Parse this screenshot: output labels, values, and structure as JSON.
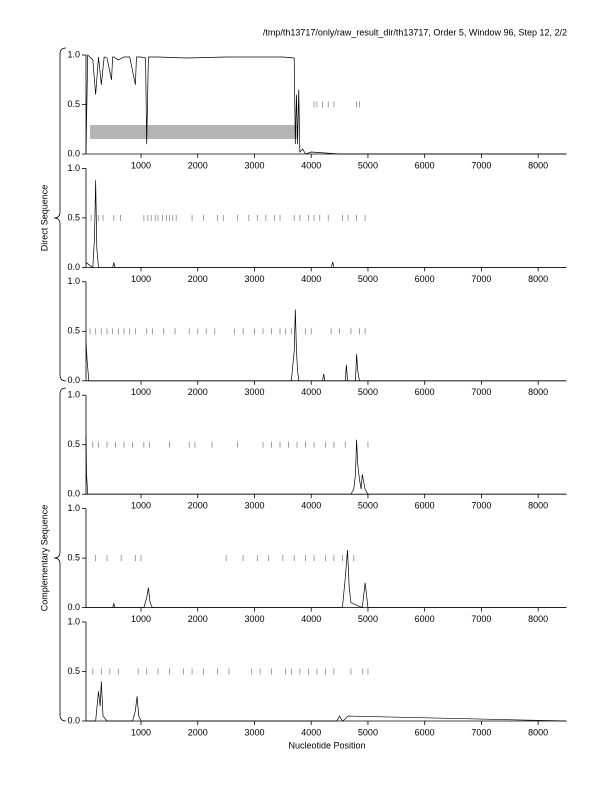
{
  "title": "/tmp/th13717/only/raw_result_dir/th13717, Order 5, Window 96, Step 12, 2/2",
  "x_label": "Nucleotide Position",
  "groups": [
    {
      "label": "Direct Sequence"
    },
    {
      "label": "Complementary Sequence"
    }
  ],
  "chart_data": [
    {
      "type": "line",
      "xlim": [
        0,
        8500
      ],
      "ylim": [
        0,
        1
      ],
      "xticks": [
        1000,
        2000,
        3000,
        4000,
        5000,
        6000,
        7000,
        8000
      ],
      "yticks": [
        {
          "value": 0,
          "label": "0.0"
        },
        {
          "value": 0.5,
          "label": "0.5"
        },
        {
          "value": 1,
          "label": "1.0"
        }
      ],
      "x": [
        30,
        60,
        100,
        150,
        200,
        250,
        300,
        350,
        400,
        480,
        500,
        520,
        600,
        700,
        800,
        900,
        920,
        950,
        1000,
        1080,
        1100,
        1130,
        1150,
        1200,
        1300,
        1800,
        2500,
        3000,
        3500,
        3700,
        3720,
        3740,
        3760,
        3780,
        3800,
        3850,
        3900,
        4000,
        4500,
        5000,
        8500
      ],
      "values": [
        0,
        1,
        0.98,
        0.95,
        0.6,
        0.98,
        0.7,
        0.98,
        0.97,
        0.75,
        0.98,
        0.98,
        0.95,
        0.98,
        0.98,
        0.7,
        0.98,
        0.98,
        0.98,
        0.97,
        0.1,
        0.98,
        0.98,
        0.98,
        0.98,
        0.97,
        0.98,
        0.98,
        0.98,
        0.97,
        0.1,
        0.6,
        0.1,
        0.65,
        0.02,
        0.05,
        0,
        0.02,
        0,
        0,
        0
      ],
      "stops": [
        4050,
        4100,
        4200,
        4300,
        4400,
        4800,
        4850
      ],
      "regions": [
        {
          "start": 100,
          "end": 3750
        }
      ]
    },
    {
      "type": "line",
      "xlim": [
        0,
        8500
      ],
      "ylim": [
        0,
        1
      ],
      "xticks": [
        1000,
        2000,
        3000,
        4000,
        5000,
        6000,
        7000,
        8000
      ],
      "yticks": [
        {
          "value": 0,
          "label": "0.0"
        },
        {
          "value": 0.5,
          "label": "0.5"
        },
        {
          "value": 1,
          "label": "1.0"
        }
      ],
      "x": [
        30,
        100,
        150,
        180,
        200,
        220,
        250,
        300,
        500,
        520,
        540,
        1000,
        4350,
        4380,
        4400,
        8500
      ],
      "values": [
        0.05,
        0.02,
        0,
        0.3,
        0.88,
        0.2,
        0,
        0,
        0,
        0.05,
        0,
        0,
        0,
        0.05,
        0,
        0
      ],
      "stops": [
        120,
        250,
        330,
        520,
        640,
        1050,
        1120,
        1180,
        1250,
        1300,
        1380,
        1450,
        1500,
        1560,
        1620,
        1900,
        2100,
        2350,
        2450,
        2700,
        2900,
        3050,
        3200,
        3350,
        3450,
        3700,
        3800,
        3950,
        4050,
        4150,
        4300,
        4550,
        4650,
        4800,
        4950
      ]
    },
    {
      "type": "line",
      "xlim": [
        0,
        8500
      ],
      "ylim": [
        0,
        1
      ],
      "xticks": [
        1000,
        2000,
        3000,
        4000,
        5000,
        6000,
        7000,
        8000
      ],
      "yticks": [
        {
          "value": 0,
          "label": "0.0"
        },
        {
          "value": 0.5,
          "label": "0.5"
        },
        {
          "value": 1,
          "label": "1.0"
        }
      ],
      "x": [
        30,
        50,
        80,
        100,
        3650,
        3700,
        3720,
        3740,
        3760,
        3780,
        4200,
        4220,
        4240,
        4600,
        4620,
        4640,
        4780,
        4800,
        4820,
        4850,
        8500
      ],
      "values": [
        0.4,
        0.2,
        0,
        0,
        0,
        0.3,
        0.72,
        0.3,
        0.1,
        0,
        0,
        0.07,
        0,
        0,
        0.16,
        0,
        0,
        0.27,
        0.1,
        0,
        0
      ],
      "stops": [
        100,
        200,
        300,
        400,
        500,
        600,
        700,
        800,
        900,
        1100,
        1200,
        1400,
        1600,
        1850,
        2000,
        2150,
        2300,
        2650,
        2800,
        3000,
        3150,
        3300,
        3450,
        3550,
        3650,
        3900,
        4000,
        4350,
        4500,
        4700,
        4850,
        4950
      ]
    },
    {
      "type": "line",
      "xlim": [
        0,
        8500
      ],
      "ylim": [
        0,
        1
      ],
      "xticks": [
        1000,
        2000,
        3000,
        4000,
        5000,
        6000,
        7000,
        8000
      ],
      "yticks": [
        {
          "value": 0,
          "label": "0.0"
        },
        {
          "value": 0.5,
          "label": "0.5"
        },
        {
          "value": 1,
          "label": "1.0"
        }
      ],
      "x": [
        30,
        40,
        60,
        100,
        4700,
        4750,
        4780,
        4800,
        4820,
        4850,
        4880,
        4900,
        4950,
        5000,
        8500
      ],
      "values": [
        0.6,
        0.2,
        0,
        0,
        0,
        0.05,
        0.2,
        0.55,
        0.3,
        0.15,
        0.05,
        0.2,
        0.05,
        0,
        0
      ],
      "stops": [
        150,
        250,
        400,
        550,
        700,
        850,
        1050,
        1150,
        1500,
        1850,
        1950,
        2250,
        2700,
        3150,
        3300,
        3450,
        3600,
        3750,
        3900,
        4050,
        4250,
        4400,
        4600,
        4800,
        5000
      ]
    },
    {
      "type": "line",
      "xlim": [
        0,
        8500
      ],
      "ylim": [
        0,
        1
      ],
      "xticks": [
        1000,
        2000,
        3000,
        4000,
        5000,
        6000,
        7000,
        8000
      ],
      "yticks": [
        {
          "value": 0,
          "label": "0.0"
        },
        {
          "value": 0.5,
          "label": "0.5"
        },
        {
          "value": 1,
          "label": "1.0"
        }
      ],
      "x": [
        30,
        500,
        520,
        540,
        1050,
        1100,
        1130,
        1160,
        1200,
        4550,
        4600,
        4640,
        4670,
        4700,
        4900,
        4920,
        4950,
        5000,
        8500
      ],
      "values": [
        0,
        0,
        0.04,
        0,
        0,
        0.1,
        0.2,
        0.05,
        0,
        0,
        0.3,
        0.58,
        0.2,
        0.05,
        0,
        0.1,
        0.25,
        0,
        0
      ],
      "stops": [
        200,
        400,
        650,
        900,
        1000,
        2500,
        2800,
        3050,
        3250,
        3500,
        3700,
        3900,
        4050,
        4250,
        4400,
        4550,
        4750
      ]
    },
    {
      "type": "line",
      "xlim": [
        0,
        8500
      ],
      "ylim": [
        0,
        1
      ],
      "xticks": [
        1000,
        2000,
        3000,
        4000,
        5000,
        6000,
        7000,
        8000
      ],
      "yticks": [
        {
          "value": 0,
          "label": "0.0"
        },
        {
          "value": 0.5,
          "label": "0.5"
        },
        {
          "value": 1,
          "label": "1.0"
        }
      ],
      "x": [
        30,
        200,
        250,
        280,
        300,
        330,
        400,
        850,
        900,
        930,
        960,
        1000,
        4450,
        4500,
        4550,
        4600,
        4650,
        8500
      ],
      "values": [
        0,
        0,
        0.3,
        0.15,
        0.4,
        0.05,
        0,
        0,
        0.1,
        0.25,
        0.05,
        0,
        0,
        0.05,
        0,
        0.02,
        0.05,
        0
      ],
      "stops": [
        150,
        300,
        450,
        600,
        950,
        1100,
        1300,
        1500,
        1750,
        1900,
        2100,
        2350,
        2550,
        2950,
        3100,
        3300,
        3550,
        3650,
        3800,
        3950,
        4100,
        4250,
        4400,
        4700,
        4900,
        5000
      ]
    }
  ]
}
